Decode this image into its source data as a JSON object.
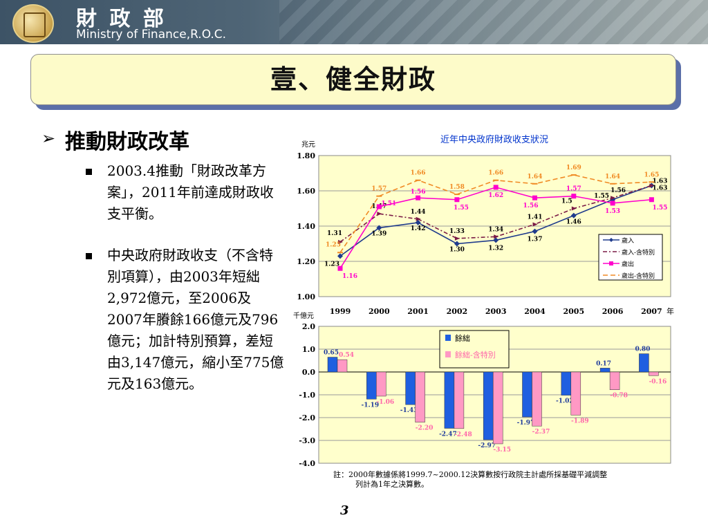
{
  "header": {
    "org_cn": "財 政 部",
    "org_en": "Ministry of Finance,R.O.C."
  },
  "slide": {
    "title": "壹、健全財政",
    "heading": "推動財政改革",
    "bullets": [
      "2003.4推動「財政改革方案」，2011年前達成財政收支平衡。",
      "中央政府財政收支（不含特別項算），由2003年短絀2,972億元，至2006及2007年賸餘166億元及796億元；加計特別預算，差短由3,147億元，縮小至775億元及163億元。"
    ],
    "page_number": "3"
  },
  "chart_data": [
    {
      "type": "line",
      "title": "近年中央政府財政收支狀況",
      "ylabel": "兆元",
      "xlabel": "年",
      "ylim": [
        1.0,
        1.8
      ],
      "yticks": [
        "1.80",
        "1.60",
        "1.40",
        "1.20",
        "1.00"
      ],
      "categories": [
        "1999",
        "2000",
        "2001",
        "2002",
        "2003",
        "2004",
        "2005",
        "2006",
        "2007"
      ],
      "legend_position": "lower-right",
      "series": [
        {
          "name": "歲入",
          "color": "#1f3b8c",
          "dash": "",
          "marker": "diamond",
          "values": [
            1.23,
            1.39,
            1.42,
            1.3,
            1.32,
            1.37,
            1.46,
            1.55,
            1.63
          ],
          "labels": [
            "1.23",
            "1.39",
            "1.42",
            "1.30",
            "1.32",
            "1.37",
            "1.46",
            "1.55",
            "1.63"
          ]
        },
        {
          "name": "歲入-含特別",
          "color": "#7a1a45",
          "dash": "6,3,2,3",
          "marker": "triangle",
          "values": [
            1.31,
            1.47,
            1.44,
            1.33,
            1.34,
            1.41,
            1.5,
            1.56,
            1.63
          ],
          "labels": [
            "1.31",
            "1.47",
            "1.44",
            "1.33",
            "1.34",
            "1.41",
            "1.5",
            "1.56",
            "1.63"
          ]
        },
        {
          "name": "歲出",
          "color": "#ff00cc",
          "dash": "",
          "marker": "square",
          "values": [
            1.16,
            1.51,
            1.56,
            1.55,
            1.62,
            1.56,
            1.57,
            1.53,
            1.55
          ],
          "labels": [
            "1.16",
            "1.51",
            "1.56",
            "1.55",
            "1.62",
            "1.56",
            "1.57",
            "1.53",
            "1.55"
          ]
        },
        {
          "name": "歲出-含特別",
          "color": "#f08a24",
          "dash": "7,4",
          "marker": "dash",
          "values": [
            1.25,
            1.57,
            1.66,
            1.58,
            1.66,
            1.64,
            1.69,
            1.64,
            1.65
          ],
          "labels": [
            "1.25",
            "1.57",
            "1.66",
            "1.58",
            "1.66",
            "1.64",
            "1.69",
            "1.64",
            "1.65"
          ]
        }
      ]
    },
    {
      "type": "bar",
      "ylabel": "千億元",
      "ylim": [
        -4.0,
        2.0
      ],
      "yticks": [
        "2.0",
        "1.0",
        "0.0",
        "-1.0",
        "-2.0",
        "-3.0",
        "-4.0"
      ],
      "categories": [
        "1999",
        "2000",
        "2001",
        "2002",
        "2003",
        "2004",
        "2005",
        "2006",
        "2007"
      ],
      "legend_position": "top-center",
      "series": [
        {
          "name": "餘絀",
          "color": "#1f5fe0",
          "values": [
            0.65,
            -1.19,
            -1.43,
            -2.47,
            -2.97,
            -1.97,
            -1.02,
            0.17,
            0.8
          ],
          "labels": [
            "0.65",
            "-1.19",
            "-1.43",
            "-2.47",
            "-2.97",
            "-1.97",
            "-1.02",
            "0.17",
            "0.80"
          ]
        },
        {
          "name": "餘絀-含特別",
          "color": "#ff99c4",
          "values": [
            0.54,
            -1.06,
            -2.2,
            -2.48,
            -3.15,
            -2.37,
            -1.89,
            -0.78,
            -0.16
          ],
          "labels": [
            "0.54",
            "-1.06",
            "-2.20",
            "-2.48",
            "-3.15",
            "-2.37",
            "-1.89",
            "-0.78",
            "-0.16"
          ]
        }
      ],
      "note": "註：2000年數據係將1999.7~2000.12決算數按行政院主計處所採基礎平減調整列計為1年之決算數。"
    }
  ]
}
